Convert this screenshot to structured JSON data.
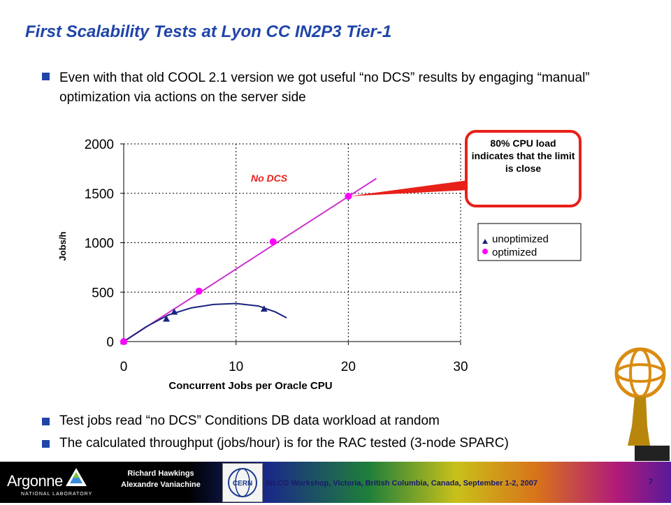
{
  "title": "First Scalability Tests at Lyon CC IN2P3 Tier-1",
  "bullets": {
    "intro": "Even with that old COOL 2.1 version we got useful “no DCS” results by engaging “manual” optimization via actions on the server side",
    "test_jobs": "Test jobs read “no DCS” Conditions DB data workload at random",
    "throughput": "The calculated throughput (jobs/hour) is for the RAC tested (3-node SPARC)"
  },
  "callout": "80% CPU load indicates that the limit is close",
  "footer": {
    "lab": "Argonne",
    "lab_sub": "NATIONAL LABORATORY",
    "author1": "Richard Hawkings",
    "author2": "Alexandre Vaniachine",
    "cern_logo_text": "CERN",
    "workshop": "WLCG Workshop, Victoria, British Columbia, Canada, September 1-2, 2007",
    "page": "7"
  },
  "colors": {
    "title": "#1f45a8",
    "optimized": "#ff00ff",
    "optimized_line": "#cc33cc",
    "unoptimized": "#1a237e",
    "callout_border": "#e8201a",
    "annotation": "#e8201a"
  },
  "chart_data": {
    "type": "scatter",
    "xlabel": "Concurrent Jobs per Oracle CPU",
    "ylabel": "Jobs/h",
    "xlim": [
      0,
      30
    ],
    "ylim": [
      0,
      2000
    ],
    "xticks": [
      0,
      10,
      20,
      30
    ],
    "yticks": [
      0,
      500,
      1000,
      1500,
      2000
    ],
    "grid": "dotted",
    "legend_position": "right",
    "annotation": "No DCS",
    "series": [
      {
        "name": "unoptimized",
        "marker": "triangle",
        "points": [
          [
            0,
            0
          ],
          [
            3.8,
            230
          ],
          [
            4.5,
            300
          ],
          [
            12.5,
            330
          ]
        ],
        "fit_curve": [
          [
            0,
            0
          ],
          [
            2,
            150
          ],
          [
            4,
            270
          ],
          [
            6,
            340
          ],
          [
            8,
            375
          ],
          [
            10,
            385
          ],
          [
            12,
            360
          ],
          [
            13.5,
            300
          ],
          [
            14.5,
            240
          ]
        ]
      },
      {
        "name": "optimized",
        "marker": "circle",
        "points": [
          [
            0,
            0
          ],
          [
            6.7,
            510
          ],
          [
            13.3,
            1010
          ],
          [
            20,
            1470
          ]
        ],
        "fit_curve": [
          [
            0,
            0
          ],
          [
            22.5,
            1650
          ]
        ]
      }
    ]
  }
}
